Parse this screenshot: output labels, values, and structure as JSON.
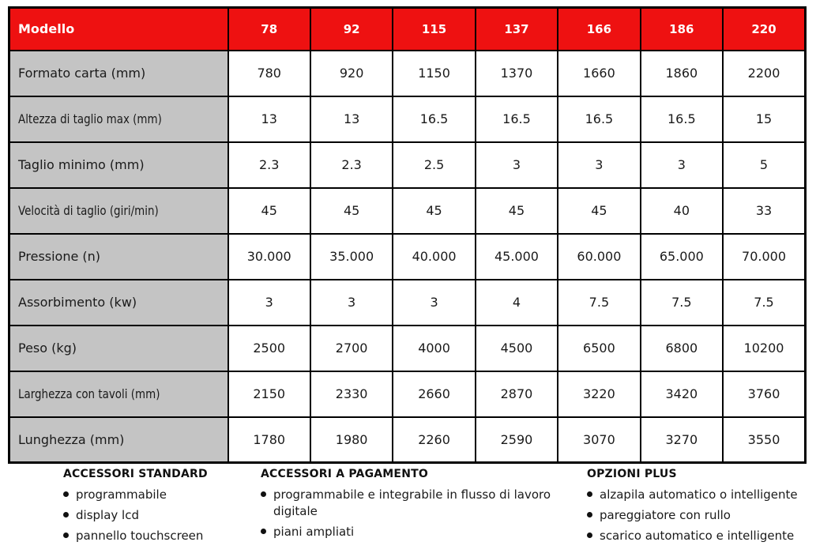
{
  "colors": {
    "header_bg": "#ee1111",
    "header_text": "#ffffff",
    "label_bg": "#c4c4c4",
    "cell_bg": "#ffffff",
    "border": "#000000",
    "text": "#1a1a1a"
  },
  "table": {
    "header": {
      "label": "Modello",
      "models": [
        "78",
        "92",
        "115",
        "137",
        "166",
        "186",
        "220"
      ]
    },
    "rows": [
      {
        "label": "Formato carta (mm)",
        "condensed": false,
        "values": [
          "780",
          "920",
          "1150",
          "1370",
          "1660",
          "1860",
          "2200"
        ]
      },
      {
        "label": "Altezza  di taglio max (mm)",
        "condensed": true,
        "values": [
          "13",
          "13",
          "16.5",
          "16.5",
          "16.5",
          "16.5",
          "15"
        ]
      },
      {
        "label": "Taglio minimo (mm)",
        "condensed": false,
        "values": [
          "2.3",
          "2.3",
          "2.5",
          "3",
          "3",
          "3",
          "5"
        ]
      },
      {
        "label": "Velocità di taglio (giri/min)",
        "condensed": true,
        "values": [
          "45",
          "45",
          "45",
          "45",
          "45",
          "40",
          "33"
        ]
      },
      {
        "label": "Pressione (n)",
        "condensed": false,
        "values": [
          "30.000",
          "35.000",
          "40.000",
          "45.000",
          "60.000",
          "65.000",
          "70.000"
        ]
      },
      {
        "label": "Assorbimento (kw)",
        "condensed": false,
        "values": [
          "3",
          "3",
          "3",
          "4",
          "7.5",
          "7.5",
          "7.5"
        ]
      },
      {
        "label": "Peso (kg)",
        "condensed": false,
        "values": [
          "2500",
          "2700",
          "4000",
          "4500",
          "6500",
          "6800",
          "10200"
        ]
      },
      {
        "label": "Larghezza con tavoli (mm)",
        "condensed": true,
        "values": [
          "2150",
          "2330",
          "2660",
          "2870",
          "3220",
          "3420",
          "3760"
        ]
      },
      {
        "label": "Lunghezza (mm)",
        "condensed": false,
        "values": [
          "1780",
          "1980",
          "2260",
          "2590",
          "3070",
          "3270",
          "3550"
        ]
      }
    ]
  },
  "sections": [
    {
      "title": "ACCESSORI STANDARD",
      "items": [
        "programmabile",
        "display lcd",
        "pannello touchscreen"
      ]
    },
    {
      "title": "ACCESSORI A PAGAMENTO",
      "items": [
        "programmabile e integrabile in flusso di lavoro digitale",
        "piani ampliati"
      ]
    },
    {
      "title": "OPZIONI PLUS",
      "items": [
        "alzapila automatico o intelligente",
        "pareggiatore con rullo",
        "scarico automatico e intelligente"
      ]
    }
  ]
}
